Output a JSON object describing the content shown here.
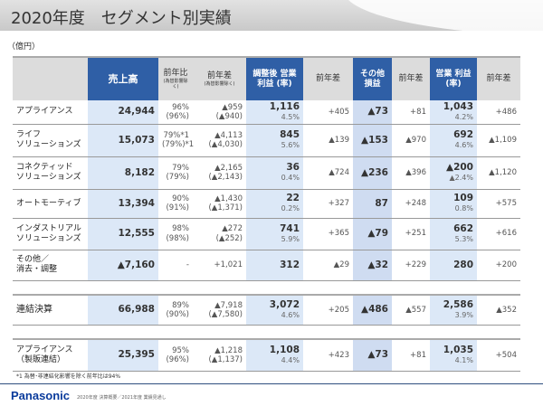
{
  "title": "2020年度　セグメント別実績",
  "unit": "（億円）",
  "headers": {
    "sales": "売上高",
    "yoy_ratio": "前年比",
    "yoy_ratio_sub": "(為替影響除く)",
    "yoy_diff": "前年差",
    "yoy_diff_sub": "(為替影響除く)",
    "adj_op": "調整後 営業利益 (率)",
    "d1": "前年差",
    "other": "その他 損益",
    "d2": "前年差",
    "op": "営業 利益 (率)",
    "d3": "前年差"
  },
  "rows": [
    {
      "label": "アプライアンス",
      "label2": "",
      "sales": "24,944",
      "ratio": "96%",
      "ratio2": "(96%)",
      "diff": "▲959",
      "diff2": "(▲940)",
      "adj": "1,116",
      "adj_rate": "4.5%",
      "d1": "+405",
      "other": "▲73",
      "d2": "+81",
      "op": "1,043",
      "op_rate": "4.2%",
      "d3": "+486"
    },
    {
      "label": "ライフ",
      "label2": "ソリューションズ",
      "sales": "15,073",
      "ratio": "79%*1",
      "ratio2": "(79%)*1",
      "diff": "▲4,113",
      "diff2": "(▲4,030)",
      "adj": "845",
      "adj_rate": "5.6%",
      "d1": "▲139",
      "other": "▲153",
      "d2": "▲970",
      "op": "692",
      "op_rate": "4.6%",
      "d3": "▲1,109"
    },
    {
      "label": "コネクティッド",
      "label2": "ソリューションズ",
      "sales": "8,182",
      "ratio": "79%",
      "ratio2": "(79%)",
      "diff": "▲2,165",
      "diff2": "(▲2,143)",
      "adj": "36",
      "adj_rate": "0.4%",
      "d1": "▲724",
      "other": "▲236",
      "d2": "▲396",
      "op": "▲200",
      "op_rate": "▲2.4%",
      "d3": "▲1,120"
    },
    {
      "label": "オートモーティブ",
      "label2": "",
      "sales": "13,394",
      "ratio": "90%",
      "ratio2": "(91%)",
      "diff": "▲1,430",
      "diff2": "(▲1,371)",
      "adj": "22",
      "adj_rate": "0.2%",
      "d1": "+327",
      "other": "87",
      "d2": "+248",
      "op": "109",
      "op_rate": "0.8%",
      "d3": "+575"
    },
    {
      "label": "インダストリアル",
      "label2": "ソリューションズ",
      "sales": "12,555",
      "ratio": "98%",
      "ratio2": "(98%)",
      "diff": "▲272",
      "diff2": "(▲252)",
      "adj": "741",
      "adj_rate": "5.9%",
      "d1": "+365",
      "other": "▲79",
      "d2": "+251",
      "op": "662",
      "op_rate": "5.3%",
      "d3": "+616"
    },
    {
      "label": "その他／",
      "label2": "消去・調整",
      "sales": "▲7,160",
      "ratio": "-",
      "ratio2": "",
      "diff": "+1,021",
      "diff2": "",
      "adj": "312",
      "adj_rate": "",
      "d1": "▲29",
      "other": "▲32",
      "d2": "+229",
      "op": "280",
      "op_rate": "",
      "d3": "+200"
    },
    {
      "label": "連結決算",
      "label2": "",
      "sales": "66,988",
      "ratio": "89%",
      "ratio2": "(90%)",
      "diff": "▲7,918",
      "diff2": "(▲7,580)",
      "adj": "3,072",
      "adj_rate": "4.6%",
      "d1": "+205",
      "other": "▲486",
      "d2": "▲557",
      "op": "2,586",
      "op_rate": "3.9%",
      "d3": "▲352"
    },
    {
      "label": "アプライアンス",
      "label2": "（製販連結）",
      "sales": "25,395",
      "ratio": "95%",
      "ratio2": "(96%)",
      "diff": "▲1,218",
      "diff2": "(▲1,137)",
      "adj": "1,108",
      "adj_rate": "4.4%",
      "d1": "+423",
      "other": "▲73",
      "d2": "+81",
      "op": "1,035",
      "op_rate": "4.1%",
      "d3": "+504"
    }
  ],
  "footnote": "*1 為替･非連結化影響を除く前年比は94%",
  "brand": "Panasonic",
  "footer": "2020年度 決算概要／2021年度 業績見通し"
}
